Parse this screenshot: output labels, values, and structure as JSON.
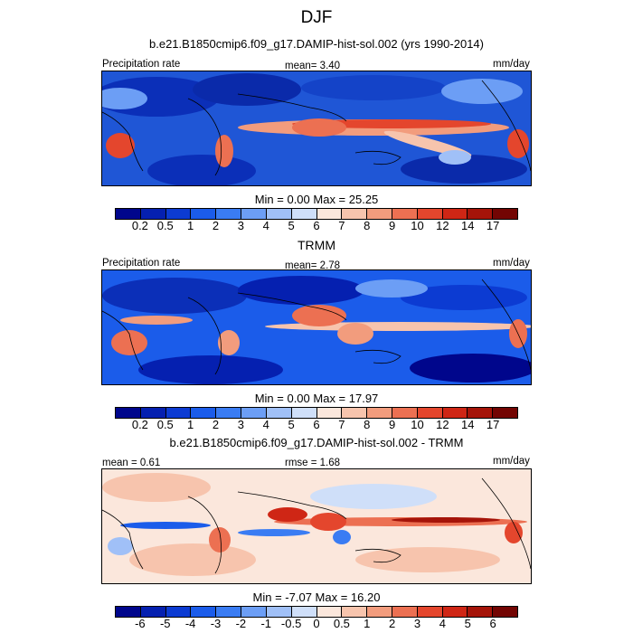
{
  "figure": {
    "title": "DJF"
  },
  "panels": [
    {
      "id": "model",
      "heading": "b.e21.B1850cmip6.f09_g17.DAMIP-hist-sol.002 (yrs 1990-2014)",
      "left_label": "Precipitation rate",
      "mean_label": "mean=   3.40",
      "units": "mm/day",
      "minmax": "Min =   0.00 Max =  25.25",
      "colorbar": {
        "colors": [
          "#00068c",
          "#0520b0",
          "#0c3bd2",
          "#1b5cea",
          "#3a7cf3",
          "#6c9ef5",
          "#a0c0f7",
          "#cfdff9",
          "#fbe7dc",
          "#f7c4ad",
          "#f29c7d",
          "#ec7052",
          "#e4462d",
          "#cf2615",
          "#a51409",
          "#730503"
        ],
        "tick_labels": [
          "0.2",
          "0.5",
          "1",
          "2",
          "3",
          "4",
          "5",
          "6",
          "7",
          "8",
          "9",
          "10",
          "12",
          "14",
          "17"
        ]
      }
    },
    {
      "id": "obs",
      "heading": "TRMM",
      "left_label": "Precipitation rate",
      "mean_label": "mean=   2.78",
      "units": "mm/day",
      "minmax": "Min =   0.00 Max =  17.97",
      "colorbar": {
        "colors": [
          "#00068c",
          "#0520b0",
          "#0c3bd2",
          "#1b5cea",
          "#3a7cf3",
          "#6c9ef5",
          "#a0c0f7",
          "#cfdff9",
          "#fbe7dc",
          "#f7c4ad",
          "#f29c7d",
          "#ec7052",
          "#e4462d",
          "#cf2615",
          "#a51409",
          "#730503"
        ],
        "tick_labels": [
          "0.2",
          "0.5",
          "1",
          "2",
          "3",
          "4",
          "5",
          "6",
          "7",
          "8",
          "9",
          "10",
          "12",
          "14",
          "17"
        ]
      }
    },
    {
      "id": "diff",
      "heading": "b.e21.B1850cmip6.f09_g17.DAMIP-hist-sol.002 - TRMM",
      "left_label": "mean =   0.61",
      "mean_label": "rmse =   1.68",
      "units": "mm/day",
      "minmax": "Min =  -7.07 Max =  16.20",
      "colorbar": {
        "colors": [
          "#00068c",
          "#0520b0",
          "#0c3bd2",
          "#1b5cea",
          "#3a7cf3",
          "#6c9ef5",
          "#a0c0f7",
          "#cfdff9",
          "#fbe7dc",
          "#f7c4ad",
          "#f29c7d",
          "#ec7052",
          "#e4462d",
          "#cf2615",
          "#a51409",
          "#730503"
        ],
        "tick_labels": [
          "-6",
          "-5",
          "-4",
          "-3",
          "-2",
          "-1",
          "-0.5",
          "0",
          "0.5",
          "1",
          "2",
          "3",
          "4",
          "5",
          "6"
        ]
      }
    }
  ]
}
